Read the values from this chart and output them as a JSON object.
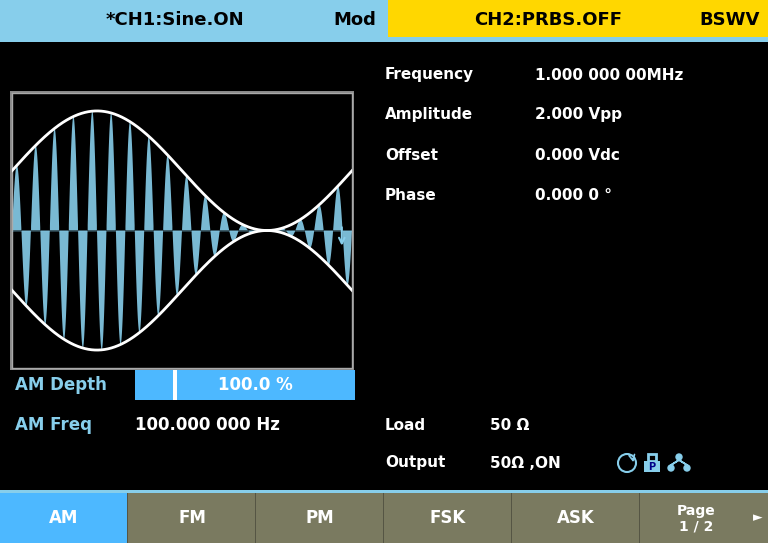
{
  "bg_color": "#000000",
  "header_bg": "#87CEEB",
  "header_yellow_bg": "#FFD700",
  "header_text_left": "*CH1:Sine.ON",
  "header_text_mid": "Mod",
  "header_text_right1": "CH2:PRBS.OFF",
  "header_text_right2": "BSWV",
  "params": [
    [
      "Frequency",
      "1.000 000 00MHz"
    ],
    [
      "Amplitude",
      "2.000 Vpp"
    ],
    [
      "Offset",
      "0.000 Vdc"
    ],
    [
      "Phase",
      "0.000 0 °"
    ]
  ],
  "am_depth_label": "AM Depth",
  "am_depth_value": "100.0 %",
  "am_freq_label": "AM Freq",
  "am_freq_value": "100.000 000 Hz",
  "load_label": "Load",
  "load_value": "50 Ω",
  "output_label": "Output",
  "output_value": "50Ω ,ON",
  "tab_items": [
    "AM",
    "FM",
    "PM",
    "FSK",
    "ASK"
  ],
  "tab_active": 0,
  "tab_active_color": "#4DB8FF",
  "tab_inactive_color": "#7A7A60",
  "page_text": "Page\n1 / 2",
  "am_signal_color": "#87CEEB",
  "envelope_color": "#ffffff",
  "text_cyan": "#87CEEB",
  "text_white": "#ffffff",
  "text_black": "#000000",
  "screen_border_color": "#87CEEB"
}
